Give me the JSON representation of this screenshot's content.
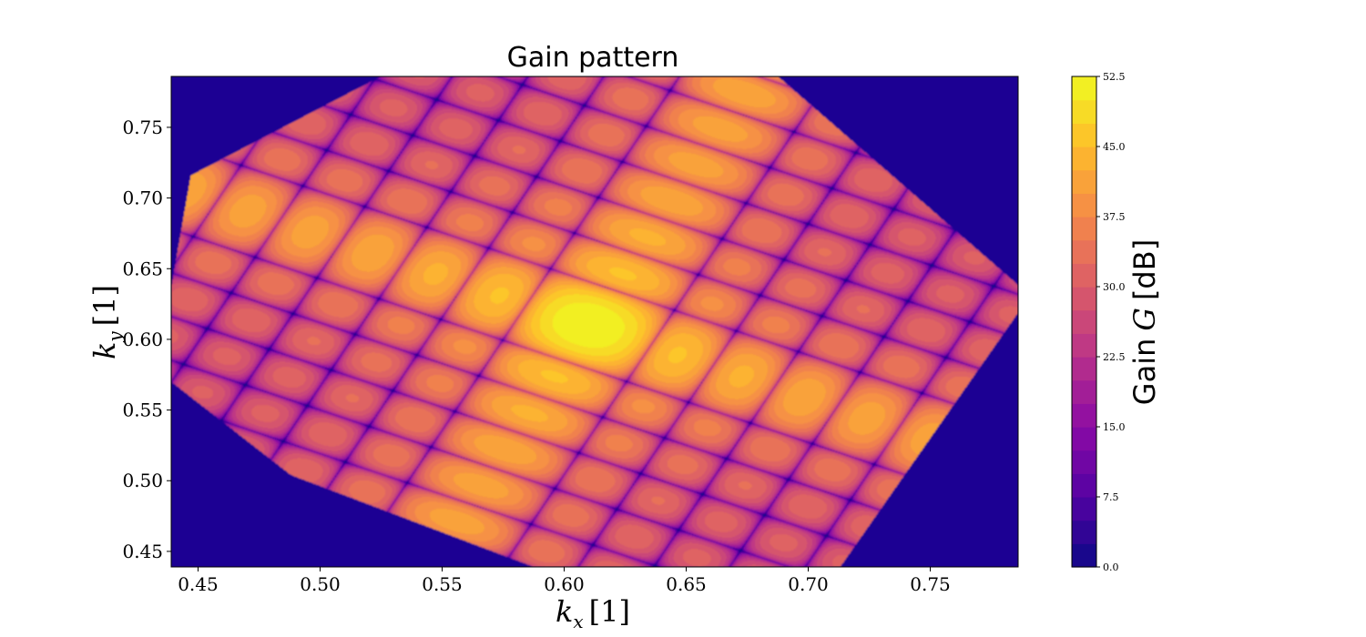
{
  "chart_data": {
    "type": "heatmap",
    "title": "Gain pattern",
    "xlabel": "k_x [1]",
    "ylabel": "k_y [1]",
    "xlim": [
      0.439,
      0.786
    ],
    "ylim": [
      0.439,
      0.786
    ],
    "x_ticks": [
      "0.45",
      "0.50",
      "0.55",
      "0.60",
      "0.65",
      "0.70",
      "0.75"
    ],
    "y_ticks": [
      "0.45",
      "0.50",
      "0.55",
      "0.60",
      "0.65",
      "0.70",
      "0.75"
    ],
    "colorbar": {
      "label": "Gain G [dB]",
      "range": [
        0,
        52.5
      ],
      "levels": 21,
      "ticks": [
        "0.0",
        "7.5",
        "15.0",
        "22.5",
        "30.0",
        "37.5",
        "45.0",
        "52.5"
      ],
      "colormap": "plasma"
    },
    "visible_region": "hexagon",
    "main_beam": {
      "kx": 0.61,
      "ky": 0.61,
      "gain_db": 52.5
    },
    "background_color": "#1d0593"
  }
}
